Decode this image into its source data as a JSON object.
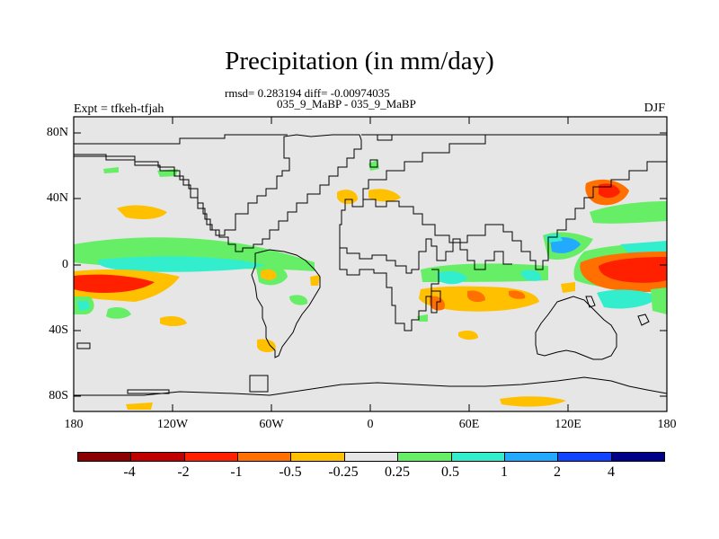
{
  "title": "Precipitation (in mm/day)",
  "stats_line": "rmsd= 0.283194 diff= -0.00974035",
  "case_line": "035_9_MaBP - 035_9_MaBP",
  "left_label": "Expt = tfkeh-tfjah",
  "right_label": "DJF",
  "y_ticks": [
    "80N",
    "40N",
    "0",
    "40S",
    "80S"
  ],
  "x_ticks": [
    "180",
    "120W",
    "60W",
    "0",
    "60E",
    "120E",
    "180"
  ],
  "colorbar": {
    "colors": [
      "#8b0000",
      "#c00000",
      "#ff2000",
      "#ff7000",
      "#ffc000",
      "#e6e6e6",
      "#66ee66",
      "#33eecc",
      "#22aaff",
      "#1144ff",
      "#000088"
    ],
    "labels": [
      "-4",
      "-2",
      "-1",
      "-0.5",
      "-0.25",
      "0.25",
      "0.5",
      "1",
      "2",
      "4"
    ]
  },
  "colors": {
    "background": "#e6e6e6",
    "coast": "#000000"
  }
}
